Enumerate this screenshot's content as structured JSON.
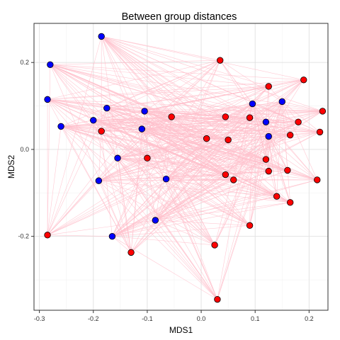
{
  "chart_data": {
    "type": "scatter",
    "title": "Between group distances",
    "xlabel": "MDS1",
    "ylabel": "MDS2",
    "xlim": [
      -0.31,
      0.235
    ],
    "ylim": [
      -0.37,
      0.29
    ],
    "x_ticks": [
      -0.3,
      -0.2,
      -0.1,
      0.0,
      0.1,
      0.2
    ],
    "x_tick_labels": [
      "-0.3",
      "-0.2",
      "-0.1",
      "0.0",
      "0.1",
      "0.2"
    ],
    "y_ticks": [
      -0.2,
      0.0,
      0.2
    ],
    "y_tick_labels": [
      "-0.2",
      "0.0",
      "0.2"
    ],
    "grid": true,
    "colors": {
      "edge": "#ffc0cb",
      "blue": "#0000ff",
      "red": "#ff0000"
    },
    "series": [
      {
        "color": "#0000ff",
        "points": [
          [
            -0.185,
            0.26
          ],
          [
            -0.28,
            0.195
          ],
          [
            -0.285,
            0.115
          ],
          [
            -0.175,
            0.095
          ],
          [
            -0.105,
            0.088
          ],
          [
            -0.2,
            0.067
          ],
          [
            -0.26,
            0.053
          ],
          [
            -0.11,
            0.047
          ],
          [
            -0.155,
            -0.02
          ],
          [
            -0.19,
            -0.072
          ],
          [
            -0.065,
            -0.068
          ],
          [
            -0.085,
            -0.163
          ],
          [
            -0.165,
            -0.2
          ],
          [
            0.095,
            0.105
          ],
          [
            0.15,
            0.11
          ],
          [
            0.12,
            0.063
          ],
          [
            0.125,
            0.03
          ]
        ]
      },
      {
        "color": "#ff0000",
        "points": [
          [
            0.035,
            0.205
          ],
          [
            0.19,
            0.16
          ],
          [
            0.125,
            0.145
          ],
          [
            0.225,
            0.088
          ],
          [
            -0.055,
            0.075
          ],
          [
            0.045,
            0.075
          ],
          [
            0.09,
            0.073
          ],
          [
            0.18,
            0.063
          ],
          [
            0.22,
            0.04
          ],
          [
            0.165,
            0.033
          ],
          [
            -0.185,
            0.042
          ],
          [
            0.01,
            0.025
          ],
          [
            0.05,
            0.022
          ],
          [
            -0.1,
            -0.02
          ],
          [
            0.12,
            -0.023
          ],
          [
            0.125,
            -0.05
          ],
          [
            0.16,
            -0.048
          ],
          [
            0.045,
            -0.058
          ],
          [
            0.06,
            -0.07
          ],
          [
            0.215,
            -0.07
          ],
          [
            0.14,
            -0.108
          ],
          [
            0.165,
            -0.122
          ],
          [
            0.09,
            -0.175
          ],
          [
            -0.285,
            -0.197
          ],
          [
            0.025,
            -0.22
          ],
          [
            -0.13,
            -0.237
          ],
          [
            0.03,
            -0.345
          ]
        ]
      }
    ]
  }
}
